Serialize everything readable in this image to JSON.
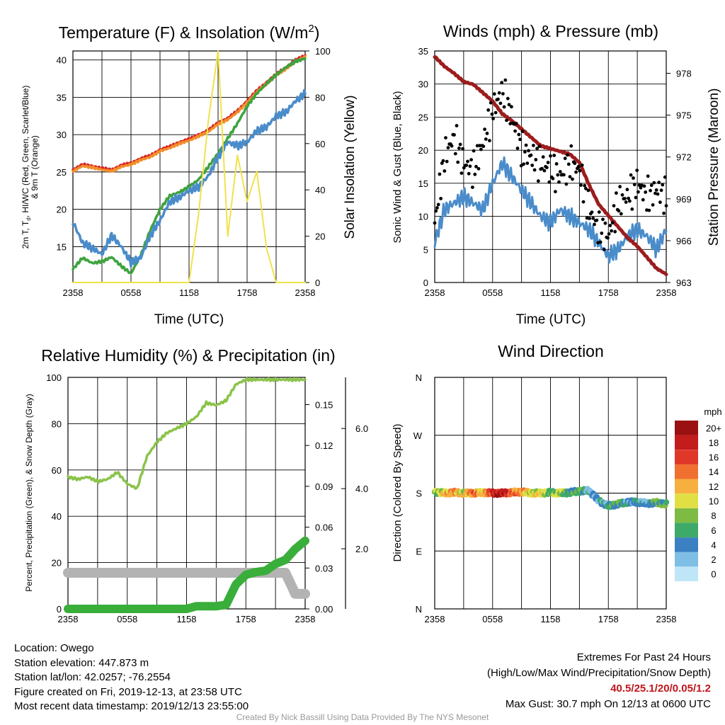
{
  "chart_data": [
    {
      "type": "line",
      "title": "Temperature (F) & Insolation (W/m",
      "title_sup": "2",
      "title_close": ")",
      "ylabel_lines": [
        "2m T, T",
        "d",
        ", HI/WC (Red, Green, Scarlet/Blue)",
        "& 9m T (Orange)"
      ],
      "y2label": "Solar Insolation (Yellow)",
      "xlabel": "Time (UTC)",
      "x_ticks": [
        "2358",
        "0558",
        "1158",
        "1758",
        "2358"
      ],
      "ylim": [
        10.2,
        41.2
      ],
      "y_ticks": [
        15,
        20,
        25,
        30,
        35,
        40
      ],
      "y2lim": [
        0,
        100
      ],
      "y2_ticks": [
        0,
        20,
        40,
        60,
        80,
        100
      ],
      "x_hours": [
        0,
        1,
        2,
        3,
        4,
        5,
        6,
        7,
        8,
        9,
        10,
        11,
        12,
        13,
        14,
        15,
        16,
        17,
        18,
        19,
        20,
        21,
        22,
        23,
        24
      ],
      "series": [
        {
          "color": "#d62728",
          "axis": "left",
          "values": [
            25.3,
            26.0,
            25.8,
            25.5,
            25.3,
            25.9,
            26.2,
            26.8,
            27.2,
            28.0,
            28.4,
            29.0,
            29.4,
            30.0,
            30.6,
            31.6,
            32.2,
            33.2,
            34.5,
            35.9,
            37.0,
            38.1,
            39.0,
            40.0,
            40.6
          ]
        },
        {
          "color": "#f28e2b",
          "axis": "left",
          "values": [
            25.1,
            25.8,
            25.6,
            25.3,
            25.1,
            25.7,
            26.0,
            26.6,
            27.0,
            27.8,
            28.2,
            28.8,
            29.2,
            29.8,
            30.4,
            31.4,
            32.0,
            33.0,
            34.3,
            35.7,
            36.8,
            37.9,
            38.8,
            39.8,
            40.4
          ]
        },
        {
          "color": "#3ea33e",
          "axis": "left",
          "values": [
            12.0,
            13.5,
            12.8,
            13.0,
            13.6,
            12.4,
            11.4,
            13.8,
            17.2,
            20.0,
            21.8,
            22.3,
            23.0,
            24.0,
            25.7,
            27.5,
            29.5,
            31.5,
            33.8,
            35.5,
            36.8,
            38.0,
            39.0,
            39.8,
            40.2
          ]
        },
        {
          "color": "#4a8cca",
          "axis": "left",
          "values": [
            18.3,
            15.5,
            14.8,
            14.0,
            16.5,
            15.0,
            12.9,
            13.5,
            16.5,
            18.5,
            21.0,
            21.6,
            22.5,
            23.0,
            24.5,
            27.0,
            29.0,
            28.5,
            29.0,
            30.5,
            31.0,
            32.5,
            33.0,
            34.5,
            35.5
          ]
        },
        {
          "color": "#f0e24a",
          "axis": "right",
          "values": [
            0,
            0,
            0,
            0,
            0,
            0,
            0,
            0,
            0,
            0,
            0,
            0,
            0,
            30,
            70,
            100,
            20,
            55,
            35,
            48,
            15,
            0,
            0,
            0,
            0
          ]
        }
      ]
    },
    {
      "type": "line",
      "title": "Winds (mph) & Pressure (mb)",
      "ylabel": "Sonic Wind & Gust (Blue, Black)",
      "y2label": "Station Pressure (Maroon)",
      "xlabel": "Time (UTC)",
      "x_ticks": [
        "2358",
        "0558",
        "1158",
        "1758",
        "2358"
      ],
      "ylim": [
        0,
        35
      ],
      "y_ticks": [
        0,
        5,
        10,
        15,
        20,
        25,
        30,
        35
      ],
      "y2lim": [
        963,
        979.6
      ],
      "y2_ticks": [
        963,
        966,
        969,
        972,
        975,
        978
      ],
      "x_hours": [
        0,
        1,
        2,
        3,
        4,
        5,
        6,
        7,
        8,
        9,
        10,
        11,
        12,
        13,
        14,
        15,
        16,
        17,
        18,
        19,
        20,
        21,
        22,
        23,
        24
      ],
      "series": [
        {
          "color": "#4a8cca",
          "axis": "left",
          "values": [
            6,
            11,
            12,
            13,
            12,
            11,
            15,
            18,
            16,
            14,
            12,
            10,
            9,
            11,
            10,
            9,
            8,
            6,
            4,
            5,
            7,
            8,
            7,
            5,
            8
          ]
        },
        {
          "color": "#000000",
          "axis": "left",
          "kind": "scatter",
          "values": [
            9,
            19,
            22,
            18,
            17,
            21,
            26,
            29,
            25,
            20,
            19,
            18,
            17,
            16,
            18,
            17,
            11,
            8,
            7,
            12,
            13,
            15,
            13,
            14,
            13
          ]
        },
        {
          "color": "#9c1d1d",
          "axis": "right",
          "values": [
            979.2,
            978.5,
            978.0,
            977.4,
            977.2,
            976.6,
            976.0,
            975.1,
            974.6,
            974.0,
            973.4,
            972.8,
            972.6,
            972.4,
            972.2,
            971.6,
            970.0,
            968.6,
            967.8,
            967.0,
            966.2,
            965.6,
            964.8,
            964.0,
            963.6
          ]
        }
      ]
    },
    {
      "type": "line",
      "title": "Relative Humidity (%) & Precipitation (in)",
      "ylabel": "Percent, Precipitation (Green), & Snow Depth (Gray)",
      "x_ticks": [
        "2358",
        "0558",
        "1158",
        "1758",
        "2358"
      ],
      "ylim": [
        0,
        100
      ],
      "y_ticks": [
        0,
        20,
        40,
        60,
        80,
        100
      ],
      "y2lim": [
        0,
        0.17
      ],
      "y2_ticks": [
        "0.00",
        "0.03",
        "0.06",
        "0.09",
        "0.12",
        "0.15"
      ],
      "y3lim": [
        0,
        7.7
      ],
      "y3_ticks": [
        "2.0",
        "4.0",
        "6.0"
      ],
      "x_hours": [
        0,
        1,
        2,
        3,
        4,
        5,
        6,
        7,
        8,
        9,
        10,
        11,
        12,
        13,
        14,
        15,
        16,
        17,
        18,
        19,
        20,
        21,
        22,
        23,
        24
      ],
      "series": [
        {
          "color": "#8bc34a",
          "axis": "left",
          "values": [
            57,
            56,
            57,
            55,
            56,
            59,
            54,
            52,
            66,
            72,
            76,
            78,
            80,
            83,
            89,
            88,
            90,
            97,
            99,
            99,
            99,
            99,
            99,
            99,
            99
          ]
        },
        {
          "color": "#3aae3a",
          "axis": "right",
          "values": [
            0,
            0,
            0,
            0,
            0,
            0,
            0,
            0,
            0,
            0,
            0,
            0,
            0,
            0.002,
            0.002,
            0.002,
            0.003,
            0.018,
            0.025,
            0.027,
            0.028,
            0.033,
            0.036,
            0.044,
            0.05
          ]
        },
        {
          "color": "#b3b3b3",
          "axis": "right3",
          "values": [
            1.2,
            1.2,
            1.2,
            1.2,
            1.2,
            1.2,
            1.2,
            1.2,
            1.2,
            1.2,
            1.2,
            1.2,
            1.2,
            1.2,
            1.2,
            1.2,
            1.2,
            1.2,
            1.2,
            1.2,
            1.2,
            1.2,
            1.2,
            0.5,
            0.5
          ]
        }
      ]
    },
    {
      "type": "scatter",
      "title": "Wind Direction",
      "ylabel": "Direction (Colored By Speed)",
      "x_ticks": [
        "2358",
        "0558",
        "1158",
        "1758",
        "2358"
      ],
      "y_ticks": [
        "N",
        "E",
        "S",
        "W",
        "N"
      ],
      "ylim": [
        0,
        360
      ],
      "colorbar_title": "mph",
      "colorbar_labels": [
        "0",
        "2",
        "4",
        "6",
        "8",
        "10",
        "12",
        "14",
        "16",
        "18",
        "20+"
      ],
      "colorbar_colors": [
        "#bfe6f7",
        "#7fbfe6",
        "#3a80c2",
        "#3daa6a",
        "#7dbb45",
        "#e0e044",
        "#f7b040",
        "#f07030",
        "#e03828",
        "#c21c1c",
        "#9b1010"
      ],
      "x_hours": [
        0,
        1,
        2,
        3,
        4,
        5,
        6,
        7,
        8,
        9,
        10,
        11,
        12,
        13,
        14,
        15,
        16,
        17,
        18,
        19,
        20,
        21,
        22,
        23,
        24
      ],
      "direction_deg": [
        182,
        180,
        181,
        180,
        180,
        181,
        180,
        180,
        181,
        182,
        180,
        180,
        181,
        180,
        181,
        183,
        184,
        168,
        160,
        163,
        166,
        166,
        164,
        165,
        163
      ],
      "speed_mph": [
        8,
        12,
        14,
        10,
        16,
        12,
        18,
        20,
        16,
        14,
        10,
        12,
        8,
        10,
        6,
        8,
        4,
        4,
        6,
        8,
        4,
        6,
        4,
        8,
        6
      ]
    }
  ],
  "footer": {
    "left": [
      "Location: Owego",
      "Station elevation: 447.873 m",
      "Station lat/lon: 42.0257; -76.2554",
      "Figure created on Fri, 2019-12-13, at 23:58 UTC",
      "Most recent data timestamp: 2019/12/13 23:55:00"
    ],
    "right": [
      "Extremes For Past 24 Hours",
      "(High/Low/Max Wind/Precipitation/Snow Depth)"
    ],
    "extremes": "40.5/25.1/20/0.05/1.2",
    "max_gust": "Max Gust: 30.7 mph On 12/13 at 0600 UTC",
    "credit": "Created By Nick Bassill Using Data Provided By The NYS Mesonet"
  }
}
